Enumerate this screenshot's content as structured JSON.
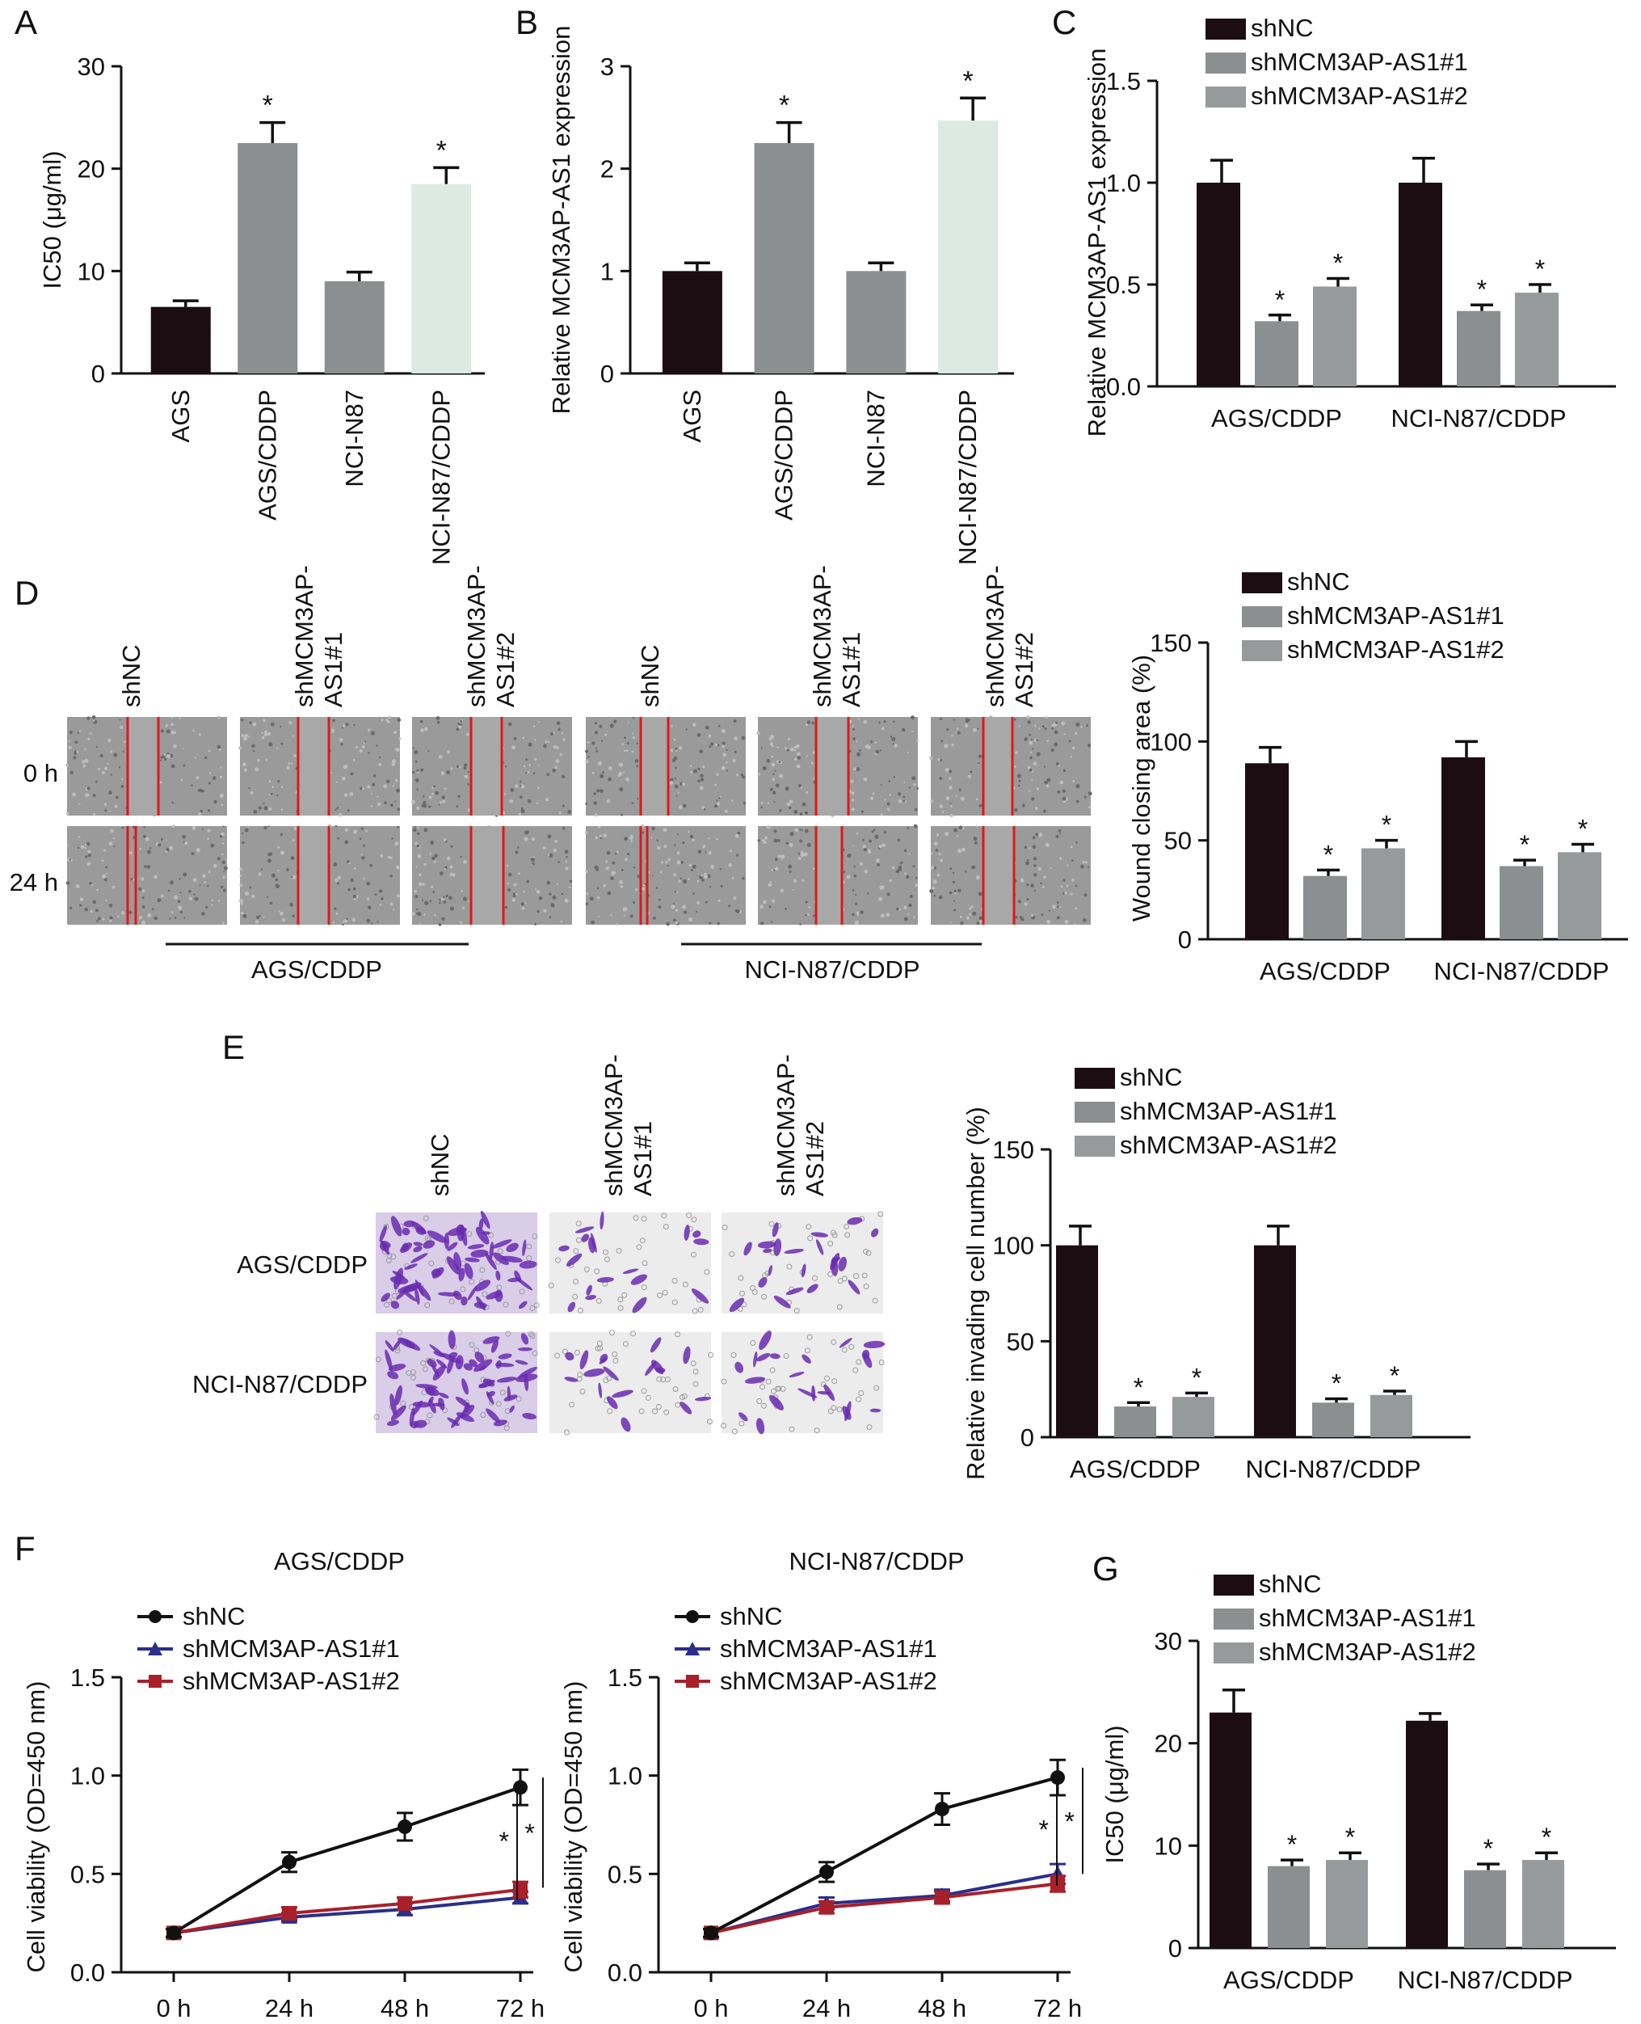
{
  "colors": {
    "shNC": "#1c0d12",
    "sh1": "#8c8f8f",
    "sh2": "#979a9a",
    "mid_gray": "#8c8f8f",
    "pale": "#dde9e3",
    "line_sh1": "#2a2f8a",
    "line_sh2": "#a8202a"
  },
  "panel_letters": [
    "A",
    "B",
    "C",
    "D",
    "E",
    "F",
    "G"
  ],
  "sig_mark": "*",
  "chart_data": [
    {
      "id": "A",
      "type": "bar",
      "ylabel": "IC50 (μg/ml)",
      "ylim": [
        0,
        30
      ],
      "yticks": [
        0,
        10,
        20,
        30
      ],
      "categories": [
        "AGS",
        "AGS/CDDP",
        "NCI-N87",
        "NCI-N87/CDDP"
      ],
      "values": [
        6.5,
        22.5,
        9.0,
        18.5
      ],
      "errors": [
        0.6,
        2.0,
        0.9,
        1.6
      ],
      "sig": [
        false,
        true,
        false,
        true
      ],
      "colors": [
        "#1c0d12",
        "#8c8f8f",
        "#8c8f8f",
        "#dde9e3"
      ]
    },
    {
      "id": "B",
      "type": "bar",
      "ylabel": "Relative MCM3AP-AS1 expression",
      "ylim": [
        0,
        3
      ],
      "yticks": [
        0,
        1,
        2,
        3
      ],
      "categories": [
        "AGS",
        "AGS/CDDP",
        "NCI-N87",
        "NCI-N87/CDDP"
      ],
      "values": [
        1.0,
        2.25,
        1.0,
        2.47
      ],
      "errors": [
        0.08,
        0.2,
        0.08,
        0.22
      ],
      "sig": [
        false,
        true,
        false,
        true
      ],
      "colors": [
        "#1c0d12",
        "#8c8f8f",
        "#8c8f8f",
        "#dde9e3"
      ]
    },
    {
      "id": "C",
      "type": "bar",
      "ylabel": "Relative MCM3AP-AS1 expression",
      "ylim": [
        0,
        1.5
      ],
      "yticks": [
        "0.0",
        "0.5",
        "1.0",
        "1.5"
      ],
      "groups": [
        "AGS/CDDP",
        "NCI-N87/CDDP"
      ],
      "series": [
        {
          "name": "shNC",
          "values": [
            1.0,
            1.0
          ],
          "errors": [
            0.11,
            0.12
          ]
        },
        {
          "name": "shMCM3AP-AS1#1",
          "values": [
            0.32,
            0.37
          ],
          "errors": [
            0.03,
            0.03
          ]
        },
        {
          "name": "shMCM3AP-AS1#2",
          "values": [
            0.49,
            0.46
          ],
          "errors": [
            0.04,
            0.04
          ]
        }
      ],
      "sig": [
        false,
        true,
        true
      ]
    },
    {
      "id": "D",
      "type": "bar",
      "ylabel": "Wound closing area (%)",
      "ylim": [
        0,
        150
      ],
      "yticks": [
        0,
        50,
        100,
        150
      ],
      "groups": [
        "AGS/CDDP",
        "NCI-N87/CDDP"
      ],
      "series": [
        {
          "name": "shNC",
          "values": [
            89,
            92
          ],
          "errors": [
            8,
            8
          ]
        },
        {
          "name": "shMCM3AP-AS1#1",
          "values": [
            32,
            37
          ],
          "errors": [
            3,
            3
          ]
        },
        {
          "name": "shMCM3AP-AS1#2",
          "values": [
            46,
            44
          ],
          "errors": [
            4,
            4
          ]
        }
      ],
      "sig": [
        false,
        true,
        true
      ]
    },
    {
      "id": "E",
      "type": "bar",
      "ylabel": "Relative invading cell number (%)",
      "ylim": [
        0,
        150
      ],
      "yticks": [
        0,
        50,
        100,
        150
      ],
      "groups": [
        "AGS/CDDP",
        "NCI-N87/CDDP"
      ],
      "series": [
        {
          "name": "shNC",
          "values": [
            100,
            100
          ],
          "errors": [
            10,
            10
          ]
        },
        {
          "name": "shMCM3AP-AS1#1",
          "values": [
            16,
            18
          ],
          "errors": [
            2,
            2
          ]
        },
        {
          "name": "shMCM3AP-AS1#2",
          "values": [
            21,
            22
          ],
          "errors": [
            2,
            2
          ]
        }
      ],
      "sig": [
        false,
        true,
        true
      ]
    },
    {
      "id": "F1",
      "type": "line",
      "title": "AGS/CDDP",
      "ylabel": "Cell viability (OD=450 nm)",
      "ylim": [
        0,
        1.5
      ],
      "yticks": [
        "0.0",
        "0.5",
        "1.0",
        "1.5"
      ],
      "x": [
        "0 h",
        "24 h",
        "48 h",
        "72 h"
      ],
      "series": [
        {
          "name": "shNC",
          "values": [
            0.2,
            0.56,
            0.74,
            0.94
          ],
          "errors": [
            0.02,
            0.05,
            0.07,
            0.09
          ]
        },
        {
          "name": "shMCM3AP-AS1#1",
          "values": [
            0.2,
            0.28,
            0.32,
            0.38
          ],
          "errors": [
            0.02,
            0.02,
            0.03,
            0.03
          ]
        },
        {
          "name": "shMCM3AP-AS1#2",
          "values": [
            0.2,
            0.3,
            0.35,
            0.42
          ],
          "errors": [
            0.02,
            0.03,
            0.03,
            0.04
          ]
        }
      ]
    },
    {
      "id": "F2",
      "type": "line",
      "title": "NCI-N87/CDDP",
      "ylabel": "Cell viability (OD=450 nm)",
      "ylim": [
        0,
        1.5
      ],
      "yticks": [
        "0.0",
        "0.5",
        "1.0",
        "1.5"
      ],
      "x": [
        "0 h",
        "24 h",
        "48 h",
        "72 h"
      ],
      "series": [
        {
          "name": "shNC",
          "values": [
            0.2,
            0.51,
            0.83,
            0.99
          ],
          "errors": [
            0.02,
            0.05,
            0.08,
            0.09
          ]
        },
        {
          "name": "shMCM3AP-AS1#1",
          "values": [
            0.2,
            0.35,
            0.39,
            0.5
          ],
          "errors": [
            0.02,
            0.03,
            0.03,
            0.05
          ]
        },
        {
          "name": "shMCM3AP-AS1#2",
          "values": [
            0.2,
            0.33,
            0.38,
            0.45
          ],
          "errors": [
            0.02,
            0.03,
            0.03,
            0.04
          ]
        }
      ]
    },
    {
      "id": "G",
      "type": "bar",
      "ylabel": "IC50 (μg/ml)",
      "ylim": [
        0,
        30
      ],
      "yticks": [
        0,
        10,
        20,
        30
      ],
      "groups": [
        "AGS/CDDP",
        "NCI-N87/CDDP"
      ],
      "series": [
        {
          "name": "shNC",
          "values": [
            23,
            22.2
          ],
          "errors": [
            2.2,
            0.7
          ]
        },
        {
          "name": "shMCM3AP-AS1#1",
          "values": [
            8.0,
            7.6
          ],
          "errors": [
            0.6,
            0.6
          ]
        },
        {
          "name": "shMCM3AP-AS1#2",
          "values": [
            8.6,
            8.6
          ],
          "errors": [
            0.7,
            0.7
          ]
        }
      ],
      "sig": [
        false,
        true,
        true
      ]
    }
  ],
  "scratch_assay": {
    "columns": [
      "shNC",
      "shMCM3AP-AS1#1",
      "shMCM3AP-AS1#2",
      "shNC",
      "shMCM3AP-AS1#1",
      "shMCM3AP-AS1#2"
    ],
    "column_labels": [
      [
        "shNC"
      ],
      [
        "shMCM3AP-",
        "AS1#1"
      ],
      [
        "shMCM3AP-",
        "AS1#2"
      ],
      [
        "shNC"
      ],
      [
        "shMCM3AP-",
        "AS1#1"
      ],
      [
        "shMCM3AP-",
        "AS1#2"
      ]
    ],
    "rows": [
      "0 h",
      "24 h"
    ],
    "groups": [
      "AGS/CDDP",
      "NCI-N87/CDDP"
    ]
  },
  "transwell": {
    "column_labels": [
      [
        "shNC"
      ],
      [
        "shMCM3AP-",
        "AS1#1"
      ],
      [
        "shMCM3AP-",
        "AS1#2"
      ]
    ],
    "rows": [
      "AGS/CDDP",
      "NCI-N87/CDDP"
    ]
  }
}
